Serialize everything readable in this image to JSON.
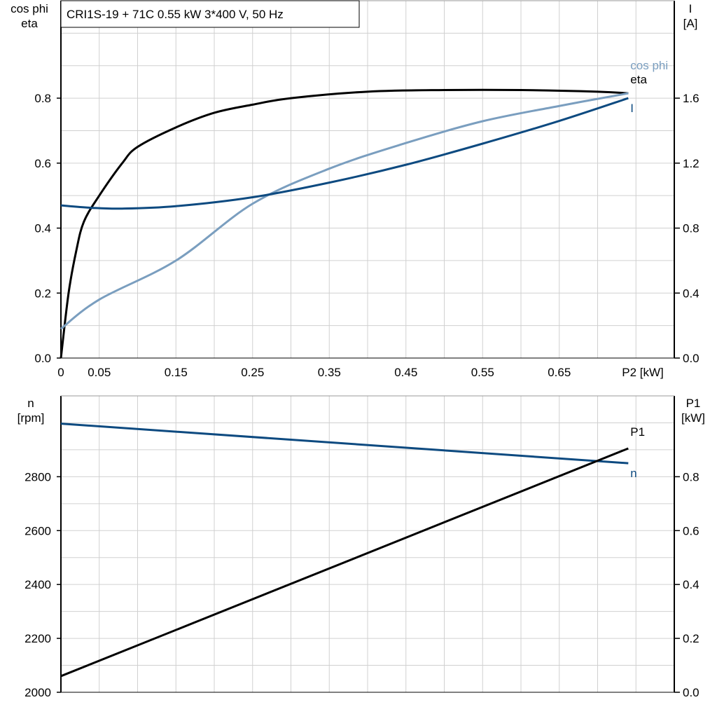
{
  "chart_data": [
    {
      "type": "line",
      "title": "CRI1S-19 + 71C   0.55 kW   3*400 V, 50 Hz",
      "xlabel": "P2 [kW]",
      "ylabel_left": [
        "cos phi",
        "eta"
      ],
      "ylabel_right": [
        "I",
        "[A]"
      ],
      "xlim": [
        0,
        0.8
      ],
      "ylim_left": [
        0,
        1.1
      ],
      "ylim_right": [
        0,
        2.2
      ],
      "xticks": [
        "0",
        "0.05",
        "0.15",
        "0.25",
        "0.35",
        "0.45",
        "0.55",
        "0.65"
      ],
      "xtick_values": [
        0,
        0.05,
        0.15,
        0.25,
        0.35,
        0.45,
        0.55,
        0.65
      ],
      "yticks_left": [
        "0.0",
        "0.2",
        "0.4",
        "0.6",
        "0.8"
      ],
      "yticks_right": [
        "0.0",
        "0.4",
        "0.8",
        "1.2",
        "1.6"
      ],
      "grid": true,
      "series": [
        {
          "name": "eta",
          "axis": "left",
          "color": "#000000",
          "x": [
            0,
            0.01,
            0.02,
            0.03,
            0.05,
            0.08,
            0.1,
            0.15,
            0.2,
            0.25,
            0.3,
            0.4,
            0.5,
            0.6,
            0.7,
            0.74
          ],
          "y": [
            0,
            0.2,
            0.33,
            0.42,
            0.5,
            0.6,
            0.65,
            0.71,
            0.755,
            0.78,
            0.8,
            0.82,
            0.825,
            0.825,
            0.82,
            0.815
          ]
        },
        {
          "name": "cos phi",
          "axis": "left",
          "color": "#7a9ebf",
          "x": [
            0,
            0.05,
            0.15,
            0.25,
            0.35,
            0.45,
            0.55,
            0.65,
            0.74
          ],
          "y": [
            0.09,
            0.18,
            0.3,
            0.475,
            0.583,
            0.662,
            0.729,
            0.776,
            0.815
          ]
        },
        {
          "name": "I",
          "axis": "right",
          "color": "#0d4a80",
          "x": [
            0,
            0.04,
            0.08,
            0.15,
            0.25,
            0.35,
            0.45,
            0.55,
            0.65,
            0.74
          ],
          "y": [
            0.94,
            0.925,
            0.92,
            0.935,
            0.99,
            1.08,
            1.19,
            1.32,
            1.46,
            1.6
          ]
        }
      ]
    },
    {
      "type": "line",
      "xlim": [
        0,
        0.8
      ],
      "ylabel_left": [
        "n",
        "[rpm]"
      ],
      "ylabel_right": [
        "P1",
        "[kW]"
      ],
      "ylim_left": [
        2000,
        3100
      ],
      "ylim_right": [
        0,
        1.1
      ],
      "yticks_left": [
        "2000",
        "2200",
        "2400",
        "2600",
        "2800"
      ],
      "yticks_right": [
        "0.0",
        "0.2",
        "0.4",
        "0.6",
        "0.8"
      ],
      "grid": true,
      "series": [
        {
          "name": "n",
          "axis": "left",
          "color": "#0d4a80",
          "x": [
            0,
            0.74
          ],
          "y": [
            2997,
            2850
          ]
        },
        {
          "name": "P1",
          "axis": "right",
          "color": "#000000",
          "x": [
            0,
            0.74
          ],
          "y": [
            0.06,
            0.905
          ]
        }
      ]
    }
  ]
}
